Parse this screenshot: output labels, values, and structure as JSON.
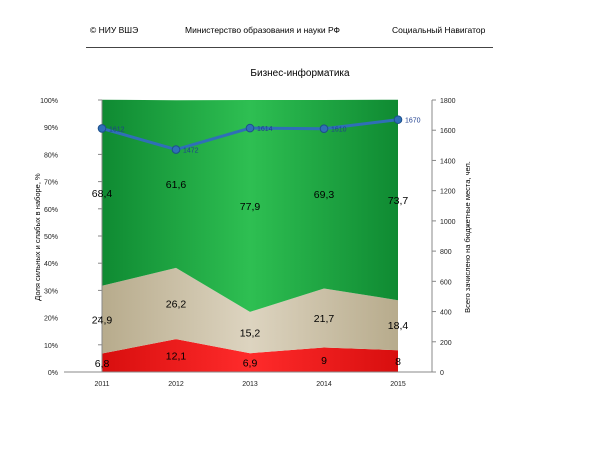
{
  "header": {
    "left": "© НИУ ВШЭ",
    "center": "Министерство образования и науки РФ",
    "right": "Социальный Навигатор"
  },
  "chart_data": {
    "type": "area",
    "title": "Бизнес-информатика",
    "categories": [
      "2011",
      "2012",
      "2013",
      "2014",
      "2015"
    ],
    "y_left": {
      "label": "Доля сильных и слабых в наборе, %",
      "range": [
        0,
        100
      ],
      "ticks": [
        "0%",
        "10%",
        "20%",
        "30%",
        "40%",
        "50%",
        "60%",
        "70%",
        "80%",
        "90%",
        "100%"
      ]
    },
    "y_right": {
      "label": "Всего зачислено на бюджетные места, чел.",
      "range": [
        0,
        1800
      ],
      "ticks": [
        "0",
        "200",
        "400",
        "600",
        "800",
        "1000",
        "1200",
        "1400",
        "1600",
        "1800"
      ]
    },
    "stacked_series": [
      {
        "values": [
          6.8,
          12.1,
          6.9,
          9,
          8
        ],
        "labels": [
          "6,8",
          "12,1",
          "6,9",
          "9",
          "8"
        ],
        "color": "#e51a1a"
      },
      {
        "values": [
          24.9,
          26.2,
          15.2,
          21.7,
          18.4
        ],
        "labels": [
          "24,9",
          "26,2",
          "15,2",
          "21,7",
          "18,4"
        ],
        "color": "#c9bfa6"
      },
      {
        "values": [
          68.4,
          61.6,
          77.9,
          69.3,
          73.7
        ],
        "labels": [
          "68,4",
          "61,6",
          "77,9",
          "69,3",
          "73,7"
        ],
        "color": "#1a9e3c"
      }
    ],
    "line_series": {
      "axis": "right",
      "values": [
        1612,
        1472,
        1614,
        1610,
        1670
      ],
      "labels": [
        "1612",
        "1472",
        "1614",
        "1610",
        "1670"
      ],
      "color": "#2f6fb7"
    },
    "legend": "none",
    "grid": false
  }
}
